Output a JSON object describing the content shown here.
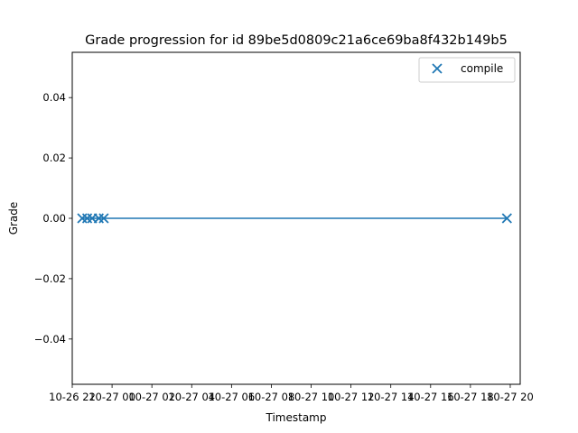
{
  "chart_data": {
    "type": "scatter",
    "title": "Grade progression for id 89be5d0809c21a6ce69ba8f432b149b5",
    "xlabel": "Timestamp",
    "ylabel": "Grade",
    "ylim": [
      -0.055,
      0.055
    ],
    "xlim": [
      "10-26 22:00",
      "10-27 20:30"
    ],
    "x_ticks": [
      "10-26 22",
      "10-27 00",
      "10-27 02",
      "10-27 04",
      "10-27 06",
      "10-27 08",
      "10-27 10",
      "10-27 12",
      "10-27 14",
      "10-27 16",
      "10-27 18",
      "10-27 20"
    ],
    "y_ticks": [
      "−0.04",
      "−0.02",
      "0.00",
      "0.02",
      "0.04"
    ],
    "y_tick_values": [
      -0.04,
      -0.02,
      0.0,
      0.02,
      0.04
    ],
    "grid": false,
    "legend_position": "top-right",
    "series": [
      {
        "name": "compile",
        "color": "#1f77b4",
        "marker": "x",
        "line": true,
        "x": [
          "10-26 22:30",
          "10-26 22:45",
          "10-26 23:00",
          "10-26 23:20",
          "10-26 23:35",
          "10-27 19:50"
        ],
        "y": [
          0,
          0,
          0,
          0,
          0,
          0
        ]
      }
    ]
  }
}
